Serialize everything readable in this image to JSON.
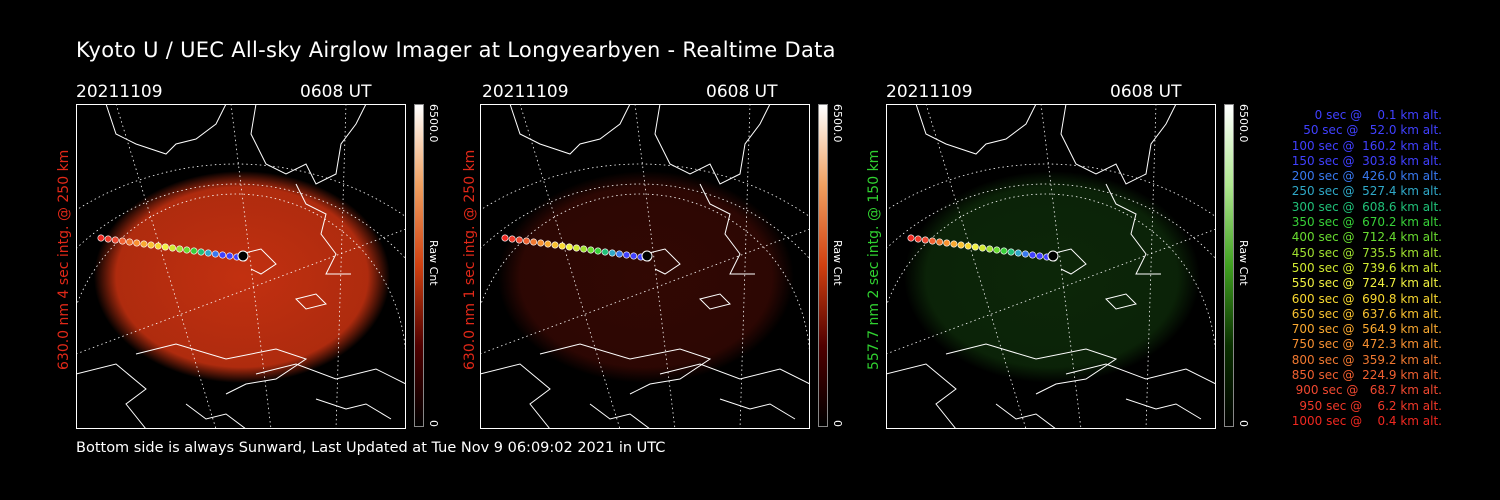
{
  "title": "Kyoto U / UEC All-sky Airglow Imager at Longyearbyen - Realtime Data",
  "footer": "Bottom side is always Sunward, Last Updated at Tue Nov  9 06:09:02 2021 in UTC",
  "panels": [
    {
      "date": "20211109",
      "time": "0608 UT",
      "label": "630.0 nm 4 sec intg. @ 250 km",
      "label_color": "#e02818",
      "cbar_max": "6500.0",
      "cbar_min": "0",
      "cbar_name": "Raw Cnt",
      "glow_color": "#c23010",
      "glow_level": 1.0
    },
    {
      "date": "20211109",
      "time": "0608 UT",
      "label": "630.0 nm 1 sec intg. @ 250 km",
      "label_color": "#e02818",
      "cbar_max": "6500.0",
      "cbar_min": "0",
      "cbar_name": "Raw Cnt",
      "glow_color": "#5a0e06",
      "glow_level": 0.55
    },
    {
      "date": "20211109",
      "time": "0608 UT",
      "label": "557.7 nm 2 sec intg. @ 150 km",
      "label_color": "#30d030",
      "cbar_max": "6500.0",
      "cbar_min": "0",
      "cbar_name": "Raw Cnt",
      "glow_color": "#14400e",
      "glow_level": 0.6
    }
  ],
  "legend": [
    {
      "text": "   0 sec @    0.1 km alt.",
      "color": "#4040ff"
    },
    {
      "text": "  50 sec @   52.0 km alt.",
      "color": "#4040ff"
    },
    {
      "text": " 100 sec @  160.2 km alt.",
      "color": "#4040ff"
    },
    {
      "text": " 150 sec @  303.8 km alt.",
      "color": "#4040ff"
    },
    {
      "text": " 200 sec @  426.0 km alt.",
      "color": "#3878f0"
    },
    {
      "text": " 250 sec @  527.4 km alt.",
      "color": "#2fa8c8"
    },
    {
      "text": " 300 sec @  608.6 km alt.",
      "color": "#20c078"
    },
    {
      "text": " 350 sec @  670.2 km alt.",
      "color": "#38d038"
    },
    {
      "text": " 400 sec @  712.4 km alt.",
      "color": "#68dc30"
    },
    {
      "text": " 450 sec @  735.5 km alt.",
      "color": "#a0e030"
    },
    {
      "text": " 500 sec @  739.6 km alt.",
      "color": "#d0e830"
    },
    {
      "text": " 550 sec @  724.7 km alt.",
      "color": "#f0f040"
    },
    {
      "text": " 600 sec @  690.8 km alt.",
      "color": "#f8d830"
    },
    {
      "text": " 650 sec @  637.6 km alt.",
      "color": "#f8c030"
    },
    {
      "text": " 700 sec @  564.9 km alt.",
      "color": "#f8a830"
    },
    {
      "text": " 750 sec @  472.3 km alt.",
      "color": "#f89030"
    },
    {
      "text": " 800 sec @  359.2 km alt.",
      "color": "#f07830"
    },
    {
      "text": " 850 sec @  224.9 km alt.",
      "color": "#f06030"
    },
    {
      "text": " 900 sec @   68.7 km alt.",
      "color": "#f04830"
    },
    {
      "text": " 950 sec @    6.2 km alt.",
      "color": "#f03828"
    },
    {
      "text": "1000 sec @    0.4 km alt.",
      "color": "#f02820"
    }
  ]
}
